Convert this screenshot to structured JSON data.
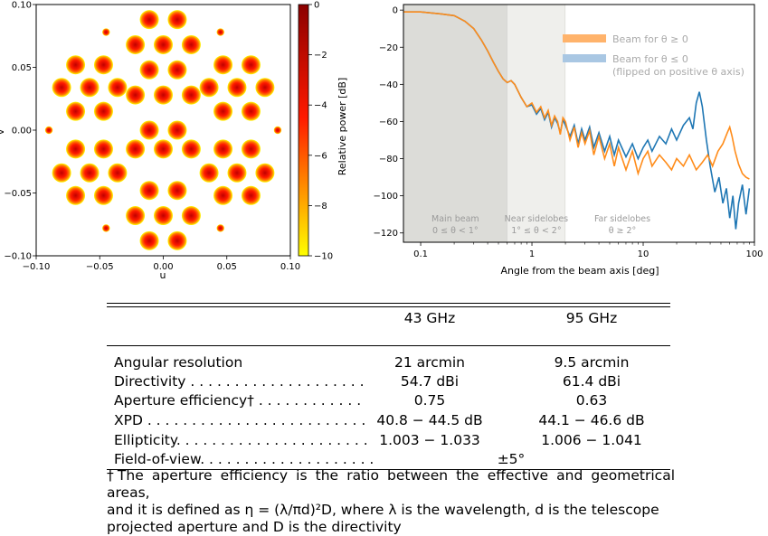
{
  "chart_data": [
    {
      "type": "scatter",
      "xlabel": "u",
      "ylabel": "v",
      "xlim": [
        -0.1,
        0.1
      ],
      "ylim": [
        -0.1,
        0.1
      ],
      "x_ticks": [
        "−0.10",
        "−0.05",
        "0.00",
        "0.05",
        "0.10"
      ],
      "y_ticks": [
        "0.10",
        "0.05",
        "0.00",
        "−0.05",
        "−0.10"
      ],
      "colorbar": {
        "label": "Relative power [dB]",
        "range": [
          -10,
          0
        ],
        "ticks": [
          "0",
          "−2",
          "−4",
          "−6",
          "−8",
          "−10"
        ],
        "colors": [
          "#ffff00",
          "#ff0000",
          "#8b0000"
        ]
      },
      "main_beams": [
        [
          -0.011,
          0.088
        ],
        [
          0.011,
          0.088
        ],
        [
          -0.022,
          0.068
        ],
        [
          0.0,
          0.068
        ],
        [
          0.022,
          0.068
        ],
        [
          -0.069,
          0.052
        ],
        [
          -0.047,
          0.052
        ],
        [
          0.047,
          0.052
        ],
        [
          0.069,
          0.052
        ],
        [
          -0.011,
          0.048
        ],
        [
          0.011,
          0.048
        ],
        [
          -0.08,
          0.034
        ],
        [
          -0.058,
          0.034
        ],
        [
          -0.036,
          0.034
        ],
        [
          0.036,
          0.034
        ],
        [
          0.058,
          0.034
        ],
        [
          0.08,
          0.034
        ],
        [
          -0.022,
          0.028
        ],
        [
          0.0,
          0.028
        ],
        [
          0.022,
          0.028
        ],
        [
          -0.069,
          0.015
        ],
        [
          -0.047,
          0.015
        ],
        [
          0.047,
          0.015
        ],
        [
          0.069,
          0.015
        ],
        [
          -0.011,
          0.0
        ],
        [
          0.011,
          0.0
        ],
        [
          -0.022,
          -0.015
        ],
        [
          0.0,
          -0.015
        ],
        [
          0.022,
          -0.015
        ],
        [
          -0.069,
          -0.015
        ],
        [
          -0.047,
          -0.015
        ],
        [
          0.047,
          -0.015
        ],
        [
          0.069,
          -0.015
        ],
        [
          -0.08,
          -0.034
        ],
        [
          -0.058,
          -0.034
        ],
        [
          -0.036,
          -0.034
        ],
        [
          0.036,
          -0.034
        ],
        [
          0.058,
          -0.034
        ],
        [
          0.08,
          -0.034
        ],
        [
          -0.011,
          -0.048
        ],
        [
          0.011,
          -0.048
        ],
        [
          -0.069,
          -0.052
        ],
        [
          -0.047,
          -0.052
        ],
        [
          0.047,
          -0.052
        ],
        [
          0.069,
          -0.052
        ],
        [
          -0.022,
          -0.068
        ],
        [
          0.0,
          -0.068
        ],
        [
          0.022,
          -0.068
        ],
        [
          -0.011,
          -0.088
        ],
        [
          0.011,
          -0.088
        ]
      ],
      "small_beams": [
        [
          -0.045,
          0.078
        ],
        [
          0.045,
          0.078
        ],
        [
          -0.09,
          0.0
        ],
        [
          0.09,
          0.0
        ],
        [
          -0.045,
          -0.078
        ],
        [
          0.045,
          -0.078
        ]
      ]
    },
    {
      "type": "line",
      "xlabel": "Angle from the beam axis [deg]",
      "ylabel": "Relative power [dB]",
      "x_scale": "log",
      "xlim": [
        0.07,
        100
      ],
      "ylim": [
        -125,
        3
      ],
      "x_ticks": [
        "0.1",
        "1",
        "10",
        "100"
      ],
      "y_ticks": [
        "0",
        "−20",
        "−40",
        "−60",
        "−80",
        "−100",
        "−120"
      ],
      "regions": [
        {
          "name": "Main beam",
          "range_label": "0 ≤ θ < 1°",
          "x_from": 0.07,
          "x_to": 0.6,
          "color": "#dcdcd8"
        },
        {
          "name": "Near sidelobes",
          "range_label": "1° ≤ θ < 2°",
          "x_from": 0.6,
          "x_to": 2.0,
          "color": "#efefec"
        },
        {
          "name": "Far sidelobes",
          "range_label": "θ ≥ 2°",
          "x_from": 2.0,
          "x_to": 100,
          "color": "#ffffff"
        }
      ],
      "legend_position": "upper-right",
      "series": [
        {
          "name": "Beam for θ ≥ 0",
          "color": "#ff8c1a",
          "points": [
            [
              0.07,
              -1
            ],
            [
              0.1,
              -1
            ],
            [
              0.15,
              -2
            ],
            [
              0.2,
              -3
            ],
            [
              0.25,
              -6
            ],
            [
              0.3,
              -10
            ],
            [
              0.35,
              -16
            ],
            [
              0.4,
              -22
            ],
            [
              0.45,
              -28
            ],
            [
              0.5,
              -33
            ],
            [
              0.55,
              -37
            ],
            [
              0.6,
              -39
            ],
            [
              0.65,
              -38
            ],
            [
              0.7,
              -40
            ],
            [
              0.8,
              -47
            ],
            [
              0.9,
              -52
            ],
            [
              1.0,
              -50
            ],
            [
              1.1,
              -55
            ],
            [
              1.2,
              -52
            ],
            [
              1.3,
              -58
            ],
            [
              1.4,
              -54
            ],
            [
              1.5,
              -62
            ],
            [
              1.6,
              -57
            ],
            [
              1.7,
              -60
            ],
            [
              1.8,
              -67
            ],
            [
              1.9,
              -58
            ],
            [
              2.0,
              -60
            ],
            [
              2.2,
              -70
            ],
            [
              2.4,
              -63
            ],
            [
              2.6,
              -74
            ],
            [
              2.8,
              -66
            ],
            [
              3.0,
              -72
            ],
            [
              3.3,
              -65
            ],
            [
              3.6,
              -78
            ],
            [
              4.0,
              -68
            ],
            [
              4.5,
              -80
            ],
            [
              5.0,
              -72
            ],
            [
              5.5,
              -84
            ],
            [
              6.0,
              -74
            ],
            [
              7.0,
              -86
            ],
            [
              8.0,
              -76
            ],
            [
              9.0,
              -88
            ],
            [
              10.0,
              -80
            ],
            [
              11.0,
              -76
            ],
            [
              12.0,
              -84
            ],
            [
              14.0,
              -78
            ],
            [
              16.0,
              -82
            ],
            [
              18.0,
              -86
            ],
            [
              20.0,
              -80
            ],
            [
              23.0,
              -84
            ],
            [
              26.0,
              -78
            ],
            [
              30.0,
              -86
            ],
            [
              34.0,
              -82
            ],
            [
              38.0,
              -78
            ],
            [
              42.0,
              -84
            ],
            [
              47.0,
              -76
            ],
            [
              52.0,
              -72
            ],
            [
              57.0,
              -66
            ],
            [
              60.0,
              -63
            ],
            [
              63.0,
              -68
            ],
            [
              67.0,
              -76
            ],
            [
              72.0,
              -83
            ],
            [
              78.0,
              -88
            ],
            [
              84.0,
              -90
            ],
            [
              90.0,
              -91
            ]
          ]
        },
        {
          "name": "Beam for θ ≤ 0",
          "note": "(flipped on positive θ axis)",
          "color": "#1f77b4",
          "points": [
            [
              0.07,
              -1
            ],
            [
              0.1,
              -1
            ],
            [
              0.15,
              -2
            ],
            [
              0.2,
              -3
            ],
            [
              0.25,
              -6
            ],
            [
              0.3,
              -10
            ],
            [
              0.35,
              -16
            ],
            [
              0.4,
              -22
            ],
            [
              0.45,
              -28
            ],
            [
              0.5,
              -33
            ],
            [
              0.55,
              -37
            ],
            [
              0.6,
              -39
            ],
            [
              0.65,
              -38
            ],
            [
              0.7,
              -40
            ],
            [
              0.8,
              -47
            ],
            [
              0.9,
              -52
            ],
            [
              1.0,
              -51
            ],
            [
              1.1,
              -56
            ],
            [
              1.2,
              -53
            ],
            [
              1.3,
              -59
            ],
            [
              1.4,
              -55
            ],
            [
              1.5,
              -63
            ],
            [
              1.6,
              -58
            ],
            [
              1.7,
              -61
            ],
            [
              1.8,
              -66
            ],
            [
              1.9,
              -59
            ],
            [
              2.0,
              -62
            ],
            [
              2.2,
              -68
            ],
            [
              2.4,
              -62
            ],
            [
              2.6,
              -72
            ],
            [
              2.8,
              -64
            ],
            [
              3.0,
              -70
            ],
            [
              3.3,
              -63
            ],
            [
              3.6,
              -74
            ],
            [
              4.0,
              -66
            ],
            [
              4.5,
              -76
            ],
            [
              5.0,
              -68
            ],
            [
              5.5,
              -78
            ],
            [
              6.0,
              -70
            ],
            [
              7.0,
              -79
            ],
            [
              8.0,
              -72
            ],
            [
              9.0,
              -80
            ],
            [
              10.0,
              -74
            ],
            [
              11.0,
              -70
            ],
            [
              12.0,
              -76
            ],
            [
              14.0,
              -68
            ],
            [
              16.0,
              -72
            ],
            [
              18.0,
              -64
            ],
            [
              20.0,
              -70
            ],
            [
              23.0,
              -62
            ],
            [
              26.0,
              -58
            ],
            [
              28.0,
              -64
            ],
            [
              30.0,
              -50
            ],
            [
              32.0,
              -44
            ],
            [
              34.0,
              -52
            ],
            [
              37.0,
              -70
            ],
            [
              40.0,
              -84
            ],
            [
              44.0,
              -98
            ],
            [
              48.0,
              -90
            ],
            [
              52.0,
              -104
            ],
            [
              56.0,
              -96
            ],
            [
              60.0,
              -112
            ],
            [
              64.0,
              -100
            ],
            [
              68.0,
              -118
            ],
            [
              72.0,
              -104
            ],
            [
              78.0,
              -94
            ],
            [
              84.0,
              -110
            ],
            [
              90.0,
              -96
            ]
          ]
        }
      ]
    }
  ],
  "table": {
    "columns": [
      "43 GHz",
      "95 GHz"
    ],
    "rows": [
      {
        "label": "Angular resolution",
        "dots": "",
        "v1": "21 arcmin",
        "v2": "9.5 arcmin"
      },
      {
        "label": "Directivity",
        "dots": " . . . . . . . . . . . . . . . . . . . .",
        "v1": "54.7 dBi",
        "v2": "61.4 dBi"
      },
      {
        "label": "Aperture efficiency†",
        "dots": " . . . . . . . . . . . .",
        "v1": "0.75",
        "v2": "0.63"
      },
      {
        "label": "XPD",
        "dots": " . . . . . . . . . . . . . . . . . . . . . . . . .",
        "v1": "40.8 − 44.5 dB",
        "v2": "44.1 − 46.6 dB"
      },
      {
        "label": "Ellipticity",
        "dots": ". . . . . . . . . . . . . . . . . . . . . .",
        "v1": "1.003 − 1.033",
        "v2": "1.006 − 1.041"
      }
    ],
    "fov": {
      "label": "Field-of-view",
      "dots": ". . . . . . . . . . . . . . . . . . . .",
      "value": "±5°"
    },
    "footnote": [
      "†The aperture efficiency is the ratio between the effective and geometrical areas,",
      "and it is defined as η = (λ/πd)²D, where λ is the wavelength, d is the telescope",
      "projected aperture and D is the directivity"
    ]
  }
}
